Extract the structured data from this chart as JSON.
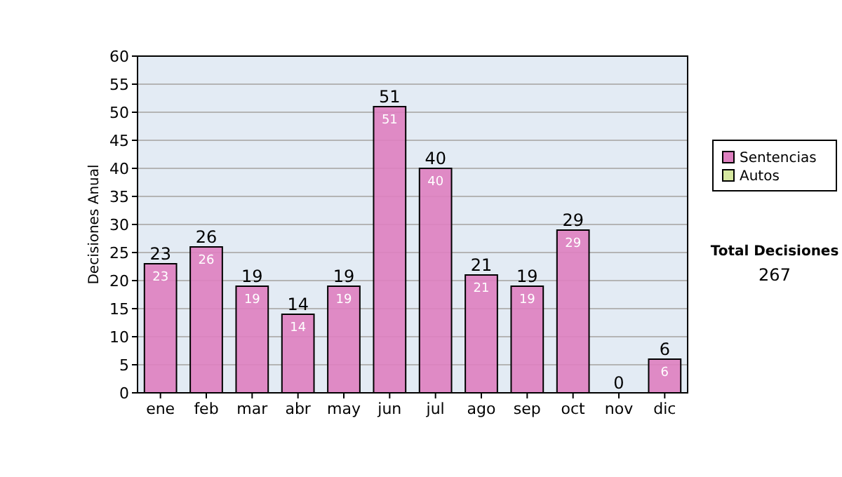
{
  "chart_data": {
    "type": "bar",
    "stacked": true,
    "ylabel": "Decisiones Anual",
    "categories": [
      "ene",
      "feb",
      "mar",
      "abr",
      "may",
      "jun",
      "jul",
      "ago",
      "sep",
      "oct",
      "nov",
      "dic"
    ],
    "series": [
      {
        "name": "Sentencias",
        "color": "#de80c0",
        "values": [
          23,
          26,
          19,
          14,
          19,
          51,
          40,
          21,
          19,
          29,
          0,
          6
        ],
        "value_labels": [
          "23",
          "26",
          "19",
          "14",
          "19",
          "51",
          "40",
          "21",
          "19",
          "29",
          null,
          "6"
        ]
      },
      {
        "name": "Autos",
        "color": "#d6e8a0",
        "values": [
          0,
          0,
          0,
          0,
          0,
          0,
          0,
          0,
          0,
          0,
          0,
          0
        ]
      }
    ],
    "totals": [
      "23",
      "26",
      "19",
      "14",
      "19",
      "51",
      "40",
      "21",
      "19",
      "29",
      "0",
      "6"
    ],
    "ylim": [
      0,
      60
    ],
    "yticks": [
      0,
      5,
      10,
      15,
      20,
      25,
      30,
      35,
      40,
      45,
      50,
      55,
      60
    ],
    "grid": "y",
    "legend": "right",
    "annotations": [
      "Total Decisiones",
      "267"
    ]
  }
}
